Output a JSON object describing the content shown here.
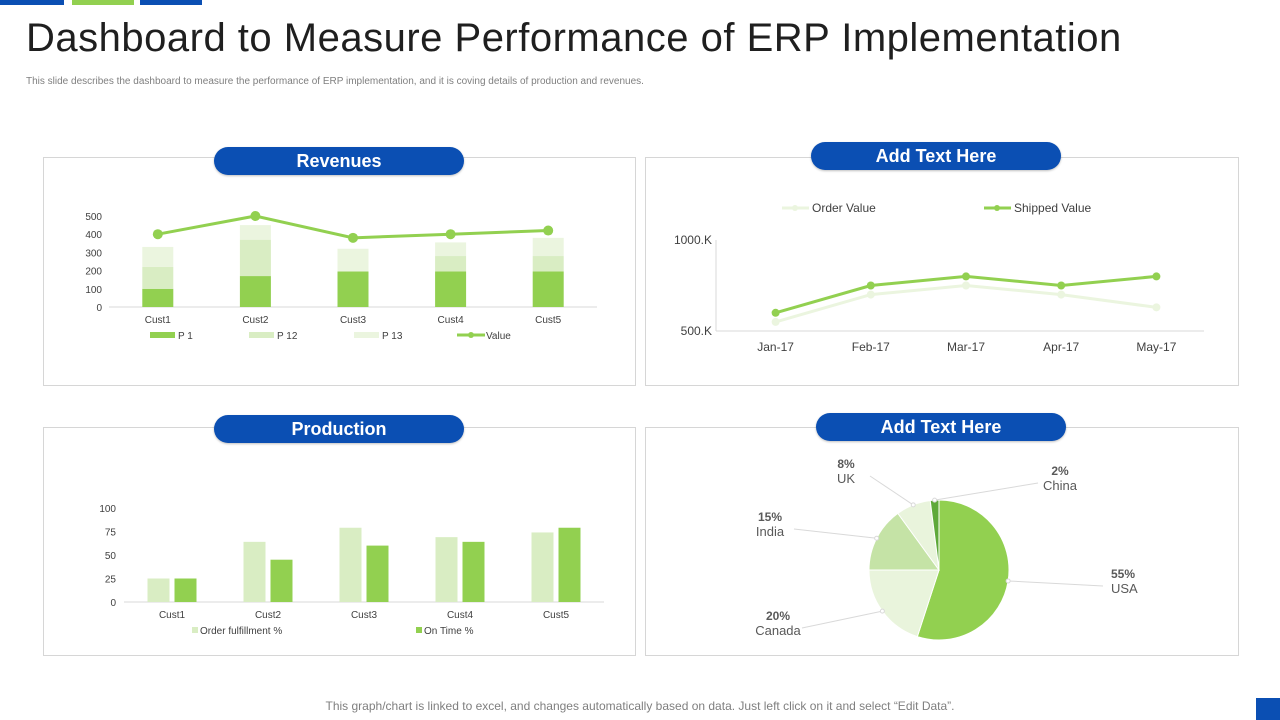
{
  "slide": {
    "title": "Dashboard to Measure Performance of ERP Implementation",
    "subtitle": "This slide describes the dashboard to measure the performance of ERP  implementation,  and it is coving details of production and revenues.",
    "footer": "This graph/chart is linked to excel,  and changes automatically based on data. Just left click on it and select “Edit Data”.",
    "colors": {
      "accent_blue": "#0b4fb3",
      "green": "#92d050",
      "light_green": "#d9edc3",
      "pale_green": "#ebf5df"
    }
  },
  "chart_data": [
    {
      "type": "bar",
      "title": "Revenues",
      "stacked": true,
      "categories": [
        "Cust1",
        "Cust2",
        "Cust3",
        "Cust4",
        "Cust5"
      ],
      "series": [
        {
          "name": "P 1",
          "values": [
            100,
            170,
            195,
            195,
            195
          ]
        },
        {
          "name": "P 12",
          "values": [
            120,
            200,
            0,
            85,
            85
          ]
        },
        {
          "name": "P 13",
          "values": [
            110,
            80,
            125,
            75,
            100
          ]
        }
      ],
      "line_series": {
        "name": "Value",
        "values": [
          400,
          500,
          380,
          400,
          420
        ]
      },
      "yticks": [
        "0",
        "100",
        "200",
        "300",
        "400",
        "500"
      ],
      "ylim": [
        0,
        500
      ],
      "legend_position": "bottom"
    },
    {
      "type": "line",
      "title": "Add Text Here",
      "categories": [
        "Jan-17",
        "Feb-17",
        "Mar-17",
        "Apr-17",
        "May-17"
      ],
      "series": [
        {
          "name": "Order Value",
          "values": [
            550,
            700,
            750,
            700,
            630
          ]
        },
        {
          "name": "Shipped Value",
          "values": [
            600,
            750,
            800,
            750,
            800
          ]
        }
      ],
      "yticks": [
        "500.K",
        "1000.K"
      ],
      "ylim": [
        500,
        1000
      ],
      "legend_position": "top"
    },
    {
      "type": "bar",
      "title": "Production",
      "categories": [
        "Cust1",
        "Cust2",
        "Cust3",
        "Cust4",
        "Cust5"
      ],
      "series": [
        {
          "name": "Order fulfillment %",
          "values": [
            25,
            64,
            79,
            69,
            74
          ]
        },
        {
          "name": "On Time %",
          "values": [
            25,
            45,
            60,
            64,
            79
          ]
        }
      ],
      "yticks": [
        "0",
        "25",
        "50",
        "75",
        "100"
      ],
      "ylim": [
        0,
        100
      ],
      "legend_position": "bottom"
    },
    {
      "type": "pie",
      "title": "Add Text Here",
      "slices": [
        {
          "label": "USA",
          "pct_label": "55%",
          "value": 55
        },
        {
          "label": "Canada",
          "pct_label": "20%",
          "value": 20
        },
        {
          "label": "India",
          "pct_label": "15%",
          "value": 15
        },
        {
          "label": "UK",
          "pct_label": "8%",
          "value": 8
        },
        {
          "label": "China",
          "pct_label": "2%",
          "value": 2
        }
      ]
    }
  ]
}
